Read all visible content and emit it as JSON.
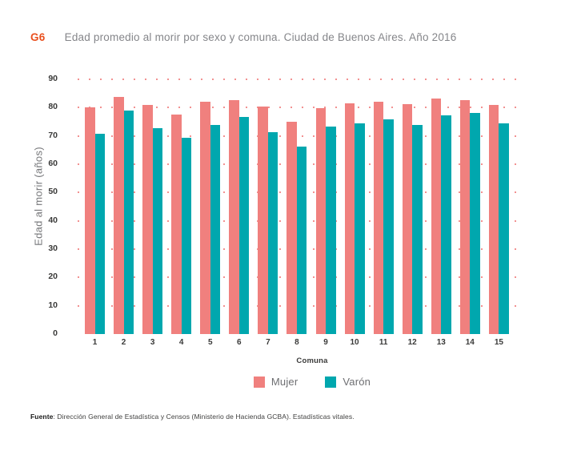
{
  "header": {
    "tag": "G6",
    "title": "Edad promedio al morir por sexo y comuna. Ciudad de Buenos Aires. Año 2016"
  },
  "chart_data": {
    "type": "bar",
    "title": "Edad promedio al morir por sexo y comuna. Ciudad de Buenos Aires. Año 2016",
    "categories": [
      "1",
      "2",
      "3",
      "4",
      "5",
      "6",
      "7",
      "8",
      "9",
      "10",
      "11",
      "12",
      "13",
      "14",
      "15"
    ],
    "series": [
      {
        "name": "Mujer",
        "color": "#F0807E",
        "values": [
          80.1,
          83.7,
          81.0,
          77.5,
          82.1,
          82.6,
          80.5,
          75.1,
          79.8,
          81.6,
          82.1,
          81.3,
          83.3,
          82.6,
          80.9
        ]
      },
      {
        "name": "Varón",
        "color": "#00A7AE",
        "values": [
          70.8,
          78.9,
          72.7,
          69.4,
          74.0,
          76.8,
          71.4,
          66.2,
          73.4,
          74.5,
          76.0,
          74.0,
          77.4,
          78.1,
          74.4
        ]
      }
    ],
    "xlabel": "Comuna",
    "ylabel": "Edad al morir (años)",
    "ylim": [
      0,
      90
    ],
    "ytick_step": 10,
    "yticks": [
      0,
      10,
      20,
      30,
      40,
      50,
      60,
      70,
      80,
      90
    ],
    "grid": "dotted-horizontal",
    "gridline_color": "#F29191",
    "legend_position": "bottom"
  },
  "footer": {
    "label": "Fuente",
    "text": ": Dirección General de Estadística y Censos (Ministerio de Hacienda GCBA). Estadísticas vitales."
  },
  "colors": {
    "accent_tag": "#E94F1D",
    "title_gray": "#85868A",
    "tick_dark": "#3A3A39",
    "axis_title_gray": "#76777A",
    "legend_text": "#6D6E71"
  }
}
